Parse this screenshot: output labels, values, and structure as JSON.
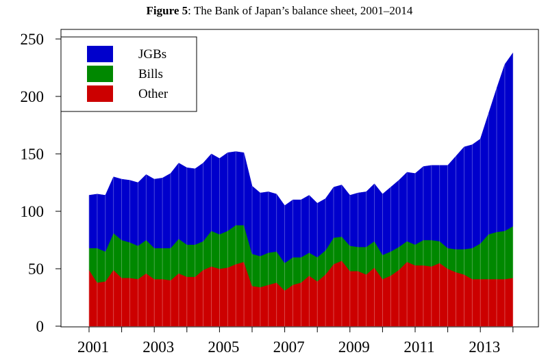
{
  "title": {
    "prefix": "Figure 5",
    "text": ": The Bank of Japan’s balance sheet, 2001–2014"
  },
  "chart_data": {
    "type": "area",
    "stacked": true,
    "title": "Figure 5: The Bank of Japan’s balance sheet, 2001–2014",
    "xlabel": "",
    "ylabel": "",
    "xlim": [
      2000.25,
      2014.75
    ],
    "ylim": [
      0,
      250
    ],
    "xticks": [
      2001,
      2002,
      2003,
      2004,
      2005,
      2006,
      2007,
      2008,
      2009,
      2010,
      2011,
      2012,
      2013,
      2014
    ],
    "xtick_labels": [
      "2001",
      "",
      "2003",
      "",
      "2005",
      "",
      "2007",
      "",
      "2009",
      "",
      "2011",
      "",
      "2013",
      ""
    ],
    "yticks": [
      0,
      50,
      100,
      150,
      200,
      250
    ],
    "ytick_labels": [
      "0",
      "50",
      "100",
      "150",
      "200",
      "250"
    ],
    "grid": false,
    "legend_position": "top-left",
    "legend": [
      "JGBs",
      "Bills",
      "Other"
    ],
    "colors": {
      "JGBs": "#0000cc",
      "Bills": "#008800",
      "Other": "#cc0000"
    },
    "x": [
      2001.0,
      2001.25,
      2001.5,
      2001.75,
      2002.0,
      2002.25,
      2002.5,
      2002.75,
      2003.0,
      2003.25,
      2003.5,
      2003.75,
      2004.0,
      2004.25,
      2004.5,
      2004.75,
      2005.0,
      2005.25,
      2005.5,
      2005.75,
      2006.0,
      2006.25,
      2006.5,
      2006.75,
      2007.0,
      2007.25,
      2007.5,
      2007.75,
      2008.0,
      2008.25,
      2008.5,
      2008.75,
      2009.0,
      2009.25,
      2009.5,
      2009.75,
      2010.0,
      2010.25,
      2010.5,
      2010.75,
      2011.0,
      2011.25,
      2011.5,
      2011.75,
      2012.0,
      2012.25,
      2012.5,
      2012.75,
      2013.0,
      2013.25,
      2013.5,
      2013.75,
      2014.0
    ],
    "series": [
      {
        "name": "Other",
        "values": [
          49,
          38,
          39,
          49,
          42,
          42,
          41,
          46,
          41,
          41,
          40,
          46,
          43,
          43,
          49,
          52,
          50,
          51,
          54,
          56,
          35,
          34,
          36,
          38,
          31,
          36,
          38,
          44,
          39,
          45,
          54,
          57,
          48,
          48,
          45,
          51,
          41,
          44,
          49,
          56,
          53,
          53,
          52,
          55,
          50,
          47,
          45,
          41,
          41,
          41,
          41,
          41,
          42
        ]
      },
      {
        "name": "Bills",
        "values": [
          19,
          30,
          26,
          32,
          33,
          31,
          29,
          29,
          27,
          27,
          28,
          30,
          28,
          28,
          25,
          31,
          30,
          32,
          34,
          32,
          28,
          27,
          28,
          27,
          24,
          24,
          22,
          20,
          21,
          21,
          23,
          21,
          22,
          21,
          24,
          23,
          21,
          21,
          20,
          18,
          18,
          22,
          23,
          19,
          18,
          20,
          22,
          27,
          31,
          39,
          41,
          42,
          45
        ]
      },
      {
        "name": "JGBs",
        "values": [
          46,
          47,
          49,
          49,
          53,
          54,
          55,
          57,
          60,
          61,
          65,
          66,
          67,
          66,
          68,
          67,
          66,
          68,
          64,
          63,
          59,
          55,
          53,
          50,
          50,
          50,
          50,
          50,
          47,
          45,
          44,
          45,
          44,
          47,
          48,
          50,
          53,
          56,
          58,
          60,
          62,
          64,
          65,
          66,
          72,
          81,
          89,
          90,
          91,
          105,
          125,
          145,
          151
        ]
      }
    ]
  }
}
